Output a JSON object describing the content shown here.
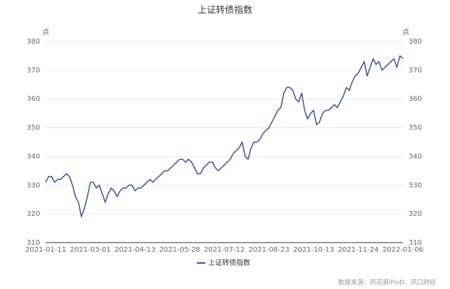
{
  "chart_data": {
    "type": "line",
    "title": "上证转债指数",
    "y_unit": "点",
    "y2_unit": "点",
    "categories": [
      "2021-01-11",
      null,
      null,
      null,
      null,
      null,
      null,
      null,
      null,
      null,
      null,
      null,
      null,
      null,
      null,
      "2021-03-01",
      null,
      null,
      null,
      null,
      null,
      null,
      null,
      null,
      null,
      null,
      null,
      null,
      null,
      null,
      "2021-04-13",
      null,
      null,
      null,
      null,
      null,
      null,
      null,
      null,
      null,
      null,
      null,
      null,
      null,
      null,
      "2021-05-28",
      null,
      null,
      null,
      null,
      null,
      null,
      null,
      null,
      null,
      null,
      null,
      null,
      null,
      null,
      "2021-07-12",
      null,
      null,
      null,
      null,
      null,
      null,
      null,
      null,
      null,
      null,
      null,
      null,
      null,
      null,
      "2021-08-23",
      null,
      null,
      null,
      null,
      null,
      null,
      null,
      null,
      null,
      null,
      null,
      null,
      null,
      null,
      "2021-10-13",
      null,
      null,
      null,
      null,
      null,
      null,
      null,
      null,
      null,
      null,
      null,
      null,
      null,
      null,
      "2021-11-24",
      null,
      null,
      null,
      null,
      null,
      null,
      null,
      null,
      null,
      null,
      null,
      null,
      null,
      null,
      "2022-01-06"
    ],
    "series": [
      {
        "name": "上证转债指数",
        "color": "#3c4e9a",
        "values": [
          331,
          333,
          333,
          331,
          332,
          332,
          333,
          334,
          333,
          330,
          326,
          324,
          319,
          322,
          326,
          331,
          331,
          329,
          330,
          327,
          324,
          327,
          329,
          328,
          326,
          328,
          329,
          329,
          330,
          330,
          328,
          329,
          329,
          330,
          331,
          332,
          331,
          332,
          333,
          334,
          335,
          335,
          336,
          337,
          338,
          339,
          339,
          338,
          339,
          338,
          336,
          334,
          334,
          336,
          337,
          338,
          338,
          336,
          335,
          336,
          337,
          338,
          339,
          341,
          342,
          343,
          345,
          340,
          339,
          343,
          345,
          345,
          346,
          348,
          349,
          350,
          352,
          354,
          356,
          357,
          362,
          364,
          364,
          363,
          360,
          359,
          362,
          356,
          353,
          355,
          356,
          351,
          352,
          355,
          356,
          356,
          357,
          358,
          357,
          359,
          361,
          364,
          363,
          366,
          368,
          369,
          371,
          373,
          368,
          371,
          374,
          372,
          373,
          370,
          371,
          372,
          373,
          374,
          371,
          375,
          374
        ]
      }
    ],
    "ylim": [
      310,
      380
    ],
    "yticks": [
      310,
      320,
      330,
      340,
      350,
      360,
      370,
      380
    ],
    "y2lim": [
      310,
      380
    ],
    "y2ticks": [
      310,
      320,
      330,
      340,
      350,
      360,
      370,
      380
    ],
    "grid": true,
    "legend": "bottom",
    "source": "数据来源：同花顺iFinD、风口财经"
  }
}
